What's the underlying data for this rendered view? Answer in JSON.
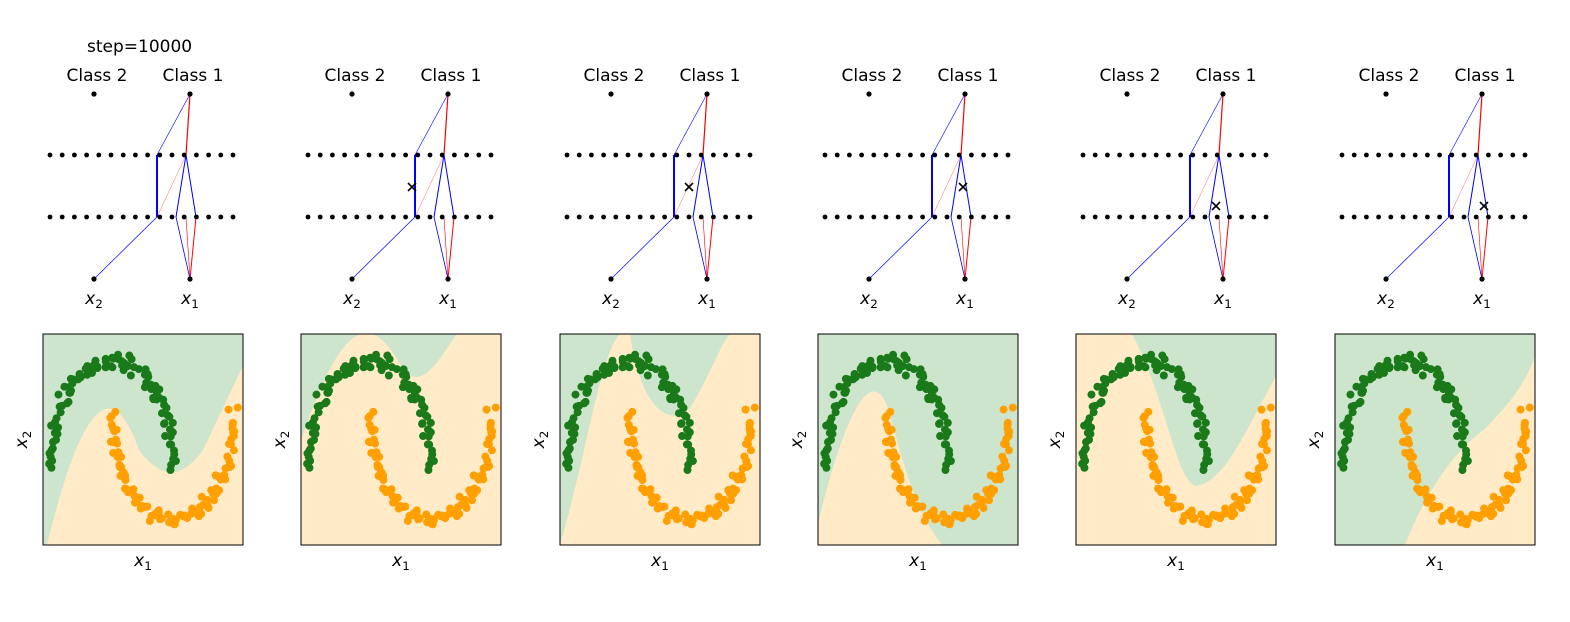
{
  "figure": {
    "step_label": "step=10000"
  },
  "labels": {
    "class_left": "Class 2",
    "class_right": "Class 1",
    "input_left": "x",
    "input_left_sub": "2",
    "input_right": "x",
    "input_right_sub": "1",
    "axis_x": "x",
    "axis_x_sub": "1",
    "axis_y": "x",
    "axis_y_sub": "2"
  },
  "colors": {
    "class1_points": "#ff9f00",
    "class2_points": "#1a7a1a",
    "class1_region": "#ffebc8",
    "class2_region": "#cce5cc",
    "positive_weight": "#ff0000",
    "negative_weight": "#0000ff"
  },
  "network": {
    "hidden_layers": 2,
    "neurons_per_layer": 16
  },
  "panels": [
    {
      "id": 1,
      "marker": "none",
      "orange_region": "right"
    },
    {
      "id": 2,
      "marker": "layer1.5",
      "orange_region": "middle_band"
    },
    {
      "id": 3,
      "marker": "layer1.5",
      "orange_region": "middle_band_wide"
    },
    {
      "id": 4,
      "marker": "layer1.5",
      "orange_region": "left_lower"
    },
    {
      "id": 5,
      "marker": "layer2",
      "orange_region": "outer_u"
    },
    {
      "id": 6,
      "marker": "layer2",
      "orange_region": "right_lower"
    }
  ]
}
